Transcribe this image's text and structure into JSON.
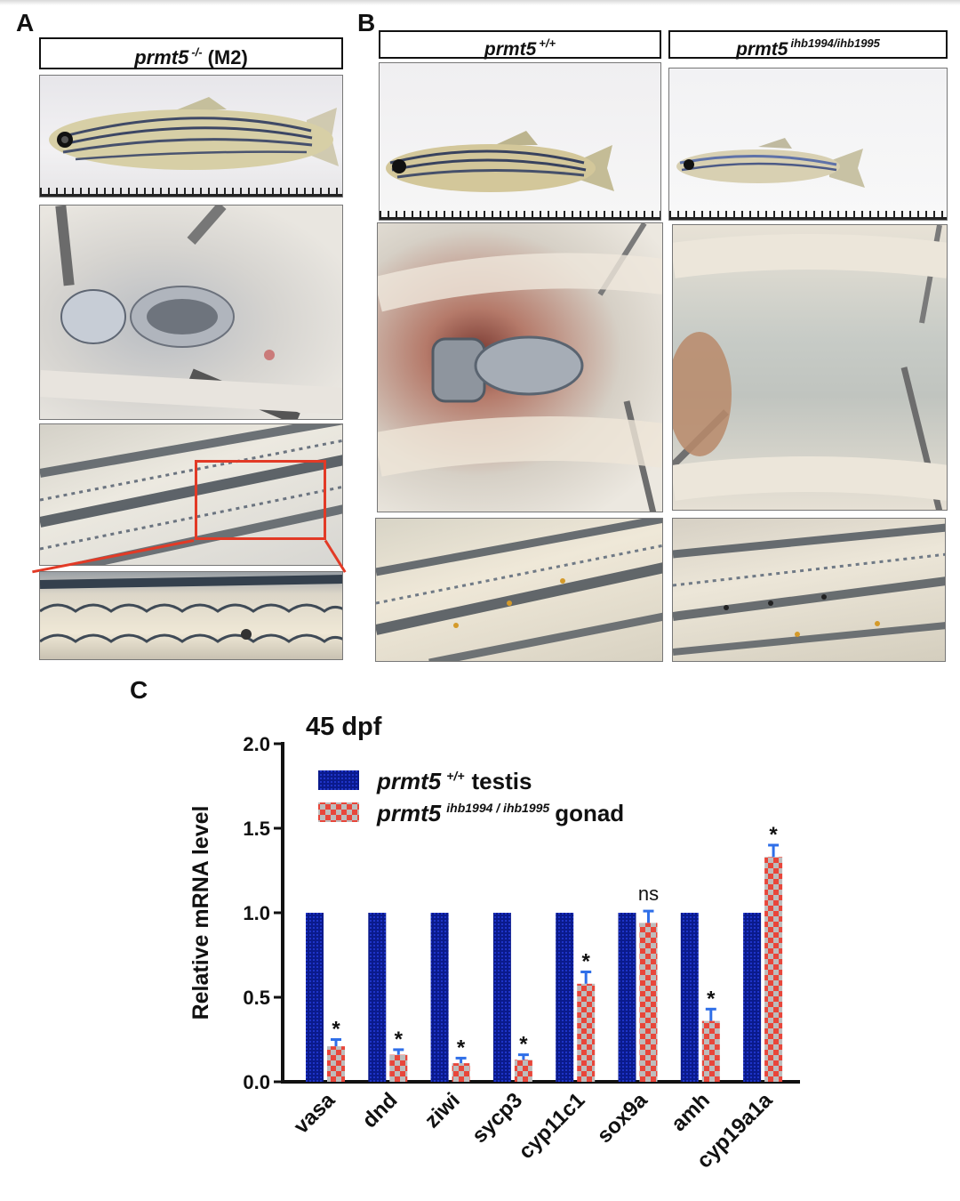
{
  "panels": {
    "a": {
      "letter": "A",
      "label_gene": "prmt5",
      "label_sup": "-/-",
      "label_suffix": "(M2)"
    },
    "b": {
      "letter": "B",
      "wt_gene": "prmt5",
      "wt_sup": "+/+",
      "mut_gene": "prmt5",
      "mut_sup": "ihb1994/ihb1995"
    },
    "c": {
      "letter": "C"
    }
  },
  "chart_data": {
    "type": "bar",
    "title": "45 dpf",
    "ylabel": "Relative mRNA level",
    "xlabel": "",
    "ylim": [
      0,
      2.0
    ],
    "yticks": [
      "0.0",
      "0.5",
      "1.0",
      "1.5",
      "2.0"
    ],
    "categories": [
      "vasa",
      "dnd",
      "ziwi",
      "sycp3",
      "cyp11c1",
      "sox9a",
      "amh",
      "cyp19a1a"
    ],
    "series": [
      {
        "name_gene": "prmt5",
        "name_sup": "+/+",
        "name_suffix": "testis",
        "color": "#0a1a8c",
        "values": [
          1.0,
          1.0,
          1.0,
          1.0,
          1.0,
          1.0,
          1.0,
          1.0
        ]
      },
      {
        "name_gene": "prmt5",
        "name_sup": "ihb1994 / ihb1995",
        "name_suffix": "gonad",
        "color": "#e8463a",
        "values": [
          0.21,
          0.16,
          0.11,
          0.13,
          0.58,
          0.94,
          0.36,
          1.33
        ],
        "errors": [
          0.04,
          0.03,
          0.03,
          0.03,
          0.07,
          0.07,
          0.07,
          0.07
        ],
        "significance": [
          "*",
          "*",
          "*",
          "*",
          "*",
          "ns",
          "*",
          "*"
        ]
      }
    ],
    "error_color": "#2f6fe8",
    "legend_position": "top-left"
  }
}
